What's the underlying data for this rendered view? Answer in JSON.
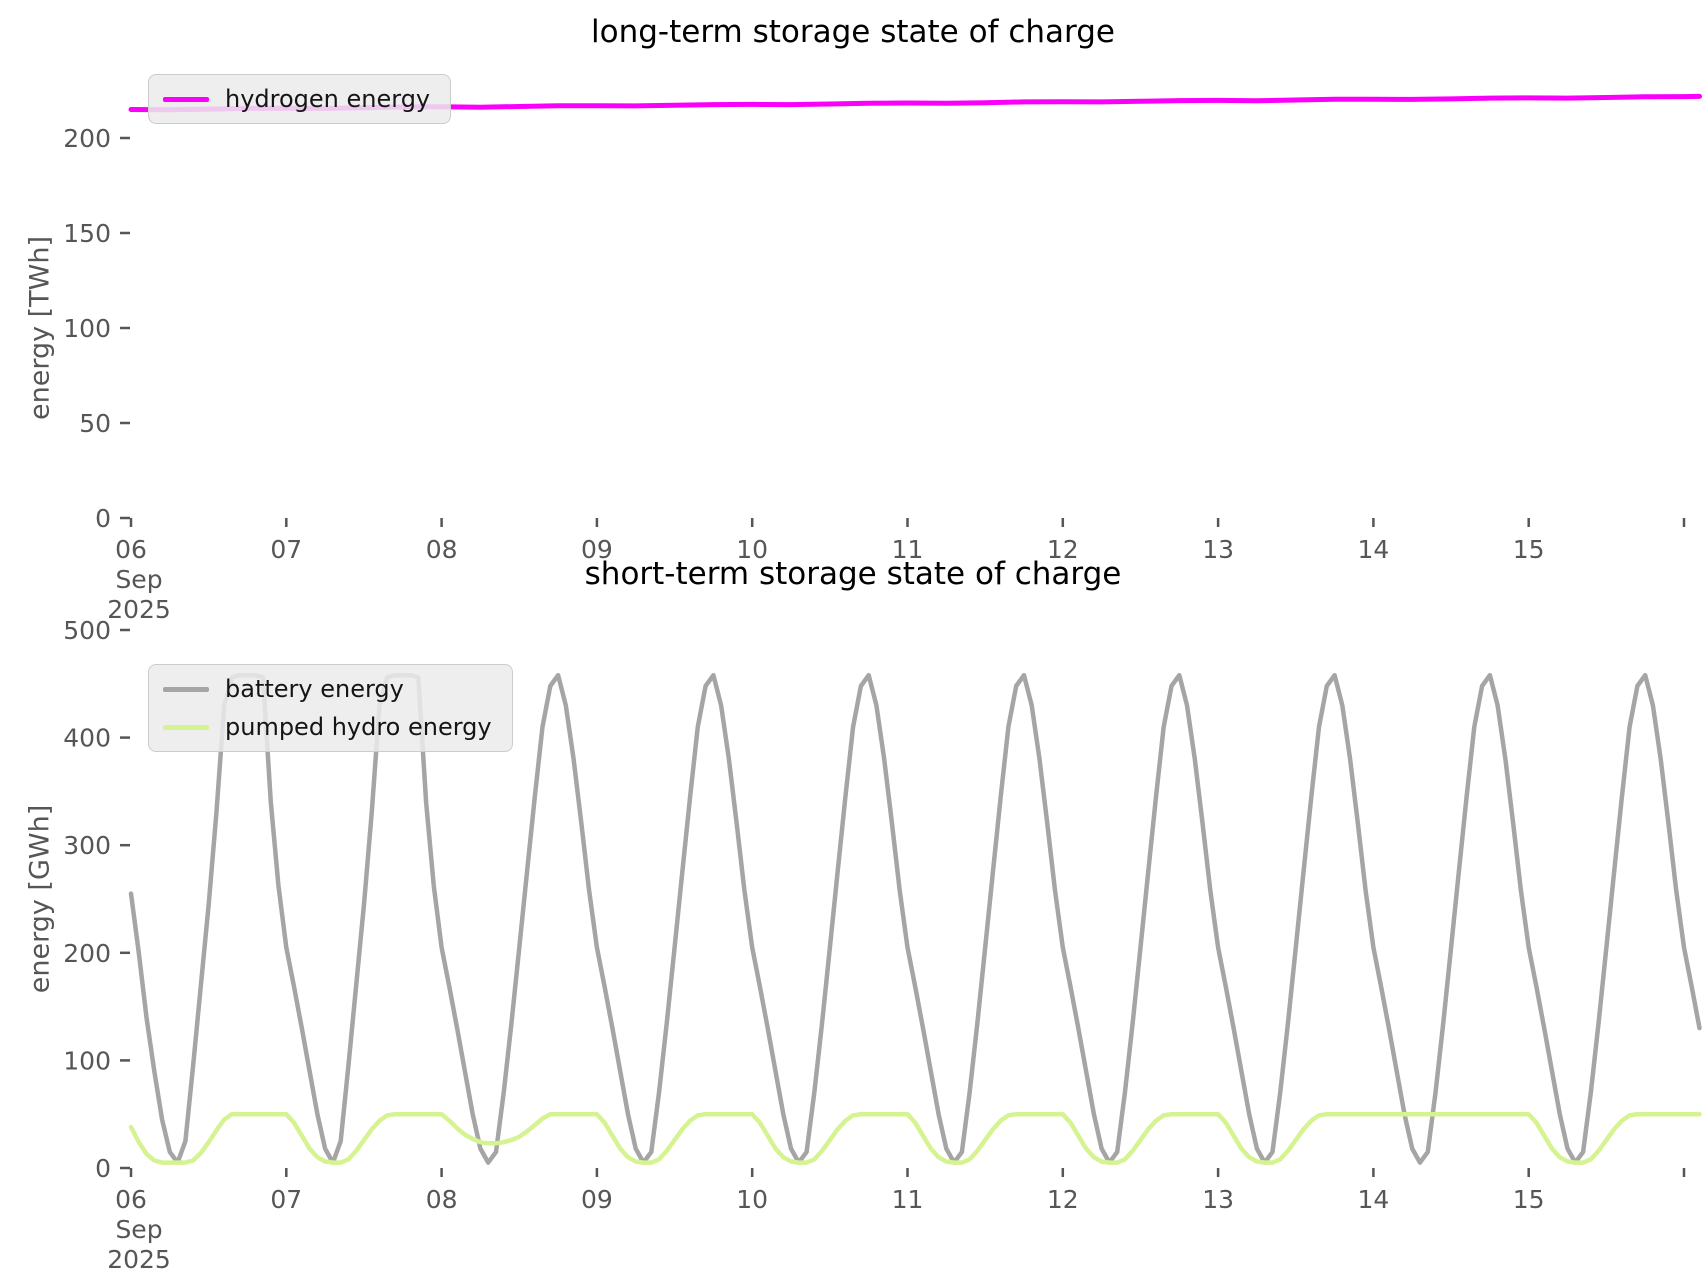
{
  "charts": {
    "long_term": {
      "title": "long-term storage state of charge",
      "ylabel": "energy [TWh]",
      "legend": [
        {
          "label": "hydrogen energy",
          "color": "#fa00fa"
        }
      ]
    },
    "short_term": {
      "title": "short-term storage state of charge",
      "ylabel": "energy [GWh]",
      "legend": [
        {
          "label": "battery energy",
          "color": "#a5a5a5"
        },
        {
          "label": "pumped hydro energy",
          "color": "#d5f391"
        }
      ]
    }
  },
  "chart_data": [
    {
      "type": "line",
      "title": "long-term storage state of charge",
      "xlabel": "",
      "ylabel": "energy [TWh]",
      "ylim": [
        0,
        230
      ],
      "yticks": [
        0,
        50,
        100,
        150,
        200
      ],
      "grid": false,
      "legend_position": "upper left",
      "xticks": {
        "labels": [
          "06",
          "07",
          "08",
          "09",
          "10",
          "11",
          "12",
          "13",
          "14",
          "15"
        ],
        "positions": [
          6,
          7,
          8,
          9,
          10,
          11,
          12,
          13,
          14,
          15
        ],
        "extra_tick": 16,
        "offset": [
          "Sep",
          "2025"
        ]
      },
      "x": {
        "values": [
          6,
          6.25,
          6.5,
          6.75,
          7,
          7.25,
          7.5,
          7.75,
          8,
          8.25,
          8.5,
          8.75,
          9,
          9.25,
          9.5,
          9.75,
          10,
          10.25,
          10.5,
          10.75,
          11,
          11.25,
          11.5,
          11.75,
          12,
          12.25,
          12.5,
          12.75,
          13,
          13.25,
          13.5,
          13.75,
          14,
          14.25,
          14.5,
          14.75,
          15,
          15.25,
          15.5,
          15.75,
          16,
          16.1
        ]
      },
      "series": [
        {
          "name": "hydrogen energy",
          "color": "#fa00fa",
          "values": [
            215.0,
            214.9,
            215.2,
            215.6,
            215.7,
            215.6,
            215.9,
            216.3,
            216.4,
            216.2,
            216.6,
            217.0,
            217.0,
            216.9,
            217.2,
            217.6,
            217.7,
            217.6,
            217.9,
            218.3,
            218.4,
            218.3,
            218.6,
            219.0,
            219.1,
            219.0,
            219.3,
            219.7,
            219.8,
            219.6,
            220.0,
            220.4,
            220.4,
            220.3,
            220.6,
            221.0,
            221.1,
            221.0,
            221.3,
            221.7,
            221.8,
            221.9
          ]
        }
      ]
    },
    {
      "type": "line",
      "title": "short-term storage state of charge",
      "xlabel": "",
      "ylabel": "energy [GWh]",
      "ylim": [
        0,
        510
      ],
      "yticks": [
        0,
        100,
        200,
        300,
        400,
        500
      ],
      "grid": false,
      "legend_position": "upper left",
      "xticks": {
        "labels": [
          "06",
          "07",
          "08",
          "09",
          "10",
          "11",
          "12",
          "13",
          "14",
          "15"
        ],
        "positions": [
          6,
          7,
          8,
          9,
          10,
          11,
          12,
          13,
          14,
          15
        ],
        "extra_tick": 16,
        "offset": [
          "Sep",
          "2025"
        ]
      },
      "x": {
        "start": 6,
        "step": 0.05,
        "count": 203
      },
      "series": [
        {
          "name": "battery energy",
          "color": "#a5a5a5",
          "values": [
            255,
            200,
            140,
            90,
            45,
            15,
            5,
            25,
            95,
            170,
            245,
            330,
            430,
            456,
            458,
            458,
            458,
            456,
            340,
            262,
            205,
            168,
            130,
            90,
            50,
            18,
            5,
            25,
            95,
            170,
            245,
            330,
            430,
            456,
            458,
            458,
            458,
            456,
            340,
            262,
            205,
            168,
            130,
            90,
            50,
            18,
            5,
            15,
            70,
            135,
            205,
            275,
            345,
            410,
            448,
            458,
            430,
            380,
            320,
            258,
            205,
            168,
            130,
            90,
            50,
            18,
            5,
            15,
            70,
            135,
            205,
            275,
            345,
            410,
            448,
            458,
            430,
            380,
            320,
            258,
            205,
            168,
            130,
            90,
            50,
            18,
            5,
            15,
            70,
            135,
            205,
            275,
            345,
            410,
            448,
            458,
            430,
            380,
            320,
            258,
            205,
            168,
            130,
            90,
            50,
            18,
            5,
            15,
            70,
            135,
            205,
            275,
            345,
            410,
            448,
            458,
            430,
            380,
            320,
            258,
            205,
            168,
            130,
            90,
            50,
            18,
            5,
            15,
            70,
            135,
            205,
            275,
            345,
            410,
            448,
            458,
            430,
            380,
            320,
            258,
            205,
            168,
            130,
            90,
            50,
            18,
            5,
            15,
            70,
            135,
            205,
            275,
            345,
            410,
            448,
            458,
            430,
            380,
            320,
            258,
            205,
            168,
            130,
            90,
            50,
            18,
            5,
            15,
            70,
            135,
            205,
            275,
            345,
            410,
            448,
            458,
            430,
            380,
            320,
            258,
            205,
            168,
            130,
            90,
            50,
            18,
            5,
            15,
            70,
            135,
            205,
            275,
            345,
            410,
            448,
            458,
            430,
            380,
            320,
            258,
            205,
            168,
            130
          ]
        },
        {
          "name": "pumped hydro energy",
          "color": "#d5f391",
          "values": [
            38,
            24,
            13,
            7,
            5,
            5,
            5,
            5,
            7,
            14,
            24,
            35,
            45,
            50,
            50,
            50,
            50,
            50,
            50,
            50,
            50,
            42,
            30,
            18,
            10,
            6,
            5,
            5,
            8,
            16,
            26,
            36,
            44,
            49,
            50,
            50,
            50,
            50,
            50,
            50,
            50,
            44,
            37,
            31,
            27,
            24,
            23,
            23,
            24,
            26,
            29,
            34,
            40,
            46,
            50,
            50,
            50,
            50,
            50,
            50,
            50,
            42,
            30,
            18,
            10,
            6,
            5,
            5,
            8,
            16,
            26,
            36,
            44,
            49,
            50,
            50,
            50,
            50,
            50,
            50,
            50,
            42,
            30,
            18,
            10,
            6,
            5,
            5,
            8,
            16,
            26,
            36,
            44,
            49,
            50,
            50,
            50,
            50,
            50,
            50,
            50,
            42,
            30,
            18,
            10,
            6,
            5,
            5,
            8,
            16,
            26,
            36,
            44,
            49,
            50,
            50,
            50,
            50,
            50,
            50,
            50,
            42,
            30,
            18,
            10,
            6,
            5,
            5,
            8,
            16,
            26,
            36,
            44,
            49,
            50,
            50,
            50,
            50,
            50,
            50,
            50,
            42,
            30,
            18,
            10,
            6,
            5,
            5,
            8,
            16,
            26,
            36,
            44,
            49,
            50,
            50,
            50,
            50,
            50,
            50,
            50,
            50,
            50,
            50,
            50,
            50,
            50,
            50,
            50,
            50,
            50,
            50,
            50,
            50,
            50,
            50,
            50,
            50,
            50,
            50,
            50,
            42,
            30,
            18,
            10,
            6,
            5,
            5,
            8,
            16,
            26,
            36,
            44,
            49,
            50,
            50,
            50,
            50,
            50,
            50,
            50,
            50,
            50
          ]
        }
      ]
    }
  ]
}
